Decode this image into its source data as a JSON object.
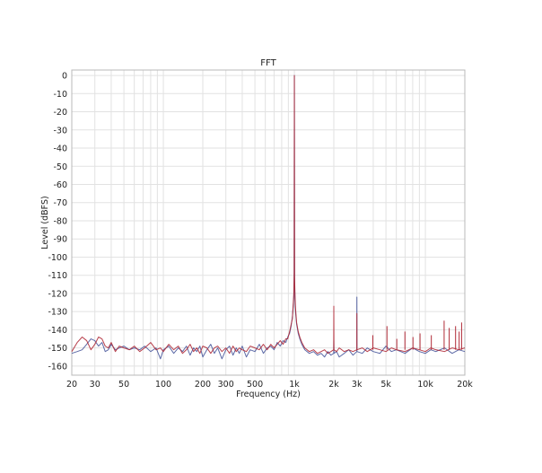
{
  "chart_data": {
    "type": "line",
    "title": "FFT",
    "xlabel": "Frequency (Hz)",
    "ylabel": "Level (dBFS)",
    "x_scale": "log",
    "xlim": [
      20,
      20000
    ],
    "ylim": [
      -165,
      3
    ],
    "grid": true,
    "x_tick_labels": [
      {
        "v": 20,
        "label": "20"
      },
      {
        "v": 30,
        "label": "30"
      },
      {
        "v": 50,
        "label": "50"
      },
      {
        "v": 100,
        "label": "100"
      },
      {
        "v": 200,
        "label": "200"
      },
      {
        "v": 300,
        "label": "300"
      },
      {
        "v": 500,
        "label": "500"
      },
      {
        "v": 1000,
        "label": "1k"
      },
      {
        "v": 2000,
        "label": "2k"
      },
      {
        "v": 3000,
        "label": "3k"
      },
      {
        "v": 5000,
        "label": "5k"
      },
      {
        "v": 10000,
        "label": "10k"
      },
      {
        "v": 20000,
        "label": "20k"
      }
    ],
    "y_tick_labels": [
      {
        "v": 0,
        "label": "0"
      },
      {
        "v": -10,
        "label": "-10"
      },
      {
        "v": -20,
        "label": "-20"
      },
      {
        "v": -30,
        "label": "-30"
      },
      {
        "v": -40,
        "label": "-40"
      },
      {
        "v": -50,
        "label": "-50"
      },
      {
        "v": -60,
        "label": "-60"
      },
      {
        "v": -70,
        "label": "-70"
      },
      {
        "v": -80,
        "label": "-80"
      },
      {
        "v": -90,
        "label": "-90"
      },
      {
        "v": -100,
        "label": "-100"
      },
      {
        "v": -110,
        "label": "-110"
      },
      {
        "v": -120,
        "label": "-120"
      },
      {
        "v": -130,
        "label": "-130"
      },
      {
        "v": -140,
        "label": "-140"
      },
      {
        "v": -150,
        "label": "-150"
      },
      {
        "v": -160,
        "label": "-160"
      }
    ],
    "series": [
      {
        "color": "#3f4f96",
        "points": [
          [
            20,
            -153
          ],
          [
            22,
            -152
          ],
          [
            24,
            -151
          ],
          [
            26,
            -148
          ],
          [
            28,
            -145
          ],
          [
            30,
            -146
          ],
          [
            32,
            -149
          ],
          [
            34,
            -147
          ],
          [
            36,
            -152
          ],
          [
            38,
            -151
          ],
          [
            40,
            -148
          ],
          [
            43,
            -151
          ],
          [
            46,
            -150
          ],
          [
            50,
            -149
          ],
          [
            55,
            -151
          ],
          [
            60,
            -150
          ],
          [
            66,
            -151
          ],
          [
            72,
            -149
          ],
          [
            80,
            -152
          ],
          [
            88,
            -150
          ],
          [
            95,
            -156
          ],
          [
            100,
            -151
          ],
          [
            110,
            -149
          ],
          [
            120,
            -153
          ],
          [
            130,
            -150
          ],
          [
            140,
            -152
          ],
          [
            150,
            -149
          ],
          [
            160,
            -154
          ],
          [
            170,
            -150
          ],
          [
            180,
            -152
          ],
          [
            190,
            -149
          ],
          [
            200,
            -155
          ],
          [
            215,
            -151
          ],
          [
            230,
            -148
          ],
          [
            245,
            -153
          ],
          [
            260,
            -150
          ],
          [
            280,
            -156
          ],
          [
            300,
            -151
          ],
          [
            320,
            -149
          ],
          [
            340,
            -154
          ],
          [
            360,
            -150
          ],
          [
            380,
            -153
          ],
          [
            400,
            -149
          ],
          [
            430,
            -155
          ],
          [
            460,
            -151
          ],
          [
            500,
            -152
          ],
          [
            540,
            -148
          ],
          [
            580,
            -153
          ],
          [
            620,
            -150
          ],
          [
            660,
            -149
          ],
          [
            700,
            -151
          ],
          [
            740,
            -147
          ],
          [
            780,
            -149
          ],
          [
            820,
            -146
          ],
          [
            860,
            -147
          ],
          [
            890,
            -144
          ],
          [
            920,
            -142
          ],
          [
            945,
            -138
          ],
          [
            965,
            -133
          ],
          [
            980,
            -127
          ],
          [
            990,
            -122
          ],
          [
            996,
            -110
          ],
          [
            1000,
            0
          ],
          [
            1004,
            -112
          ],
          [
            1010,
            -123
          ],
          [
            1020,
            -130
          ],
          [
            1040,
            -137
          ],
          [
            1070,
            -142
          ],
          [
            1100,
            -145
          ],
          [
            1140,
            -148
          ],
          [
            1200,
            -151
          ],
          [
            1300,
            -153
          ],
          [
            1400,
            -152
          ],
          [
            1500,
            -154
          ],
          [
            1600,
            -153
          ],
          [
            1700,
            -155
          ],
          [
            1800,
            -152
          ],
          [
            1900,
            -154
          ],
          [
            1995,
            -153
          ],
          [
            2000,
            -146
          ],
          [
            2005,
            -153
          ],
          [
            2100,
            -152
          ],
          [
            2200,
            -155
          ],
          [
            2400,
            -153
          ],
          [
            2600,
            -151
          ],
          [
            2800,
            -154
          ],
          [
            2995,
            -152
          ],
          [
            3000,
            -122
          ],
          [
            3005,
            -152
          ],
          [
            3300,
            -153
          ],
          [
            3600,
            -150
          ],
          [
            4000,
            -152
          ],
          [
            4500,
            -153
          ],
          [
            5000,
            -149
          ],
          [
            5500,
            -152
          ],
          [
            6000,
            -151
          ],
          [
            7000,
            -153
          ],
          [
            8000,
            -150
          ],
          [
            9000,
            -152
          ],
          [
            10000,
            -153
          ],
          [
            11000,
            -151
          ],
          [
            12000,
            -152
          ],
          [
            14000,
            -150
          ],
          [
            16000,
            -153
          ],
          [
            18000,
            -151
          ],
          [
            20000,
            -152
          ]
        ]
      },
      {
        "color": "#b02a37",
        "points": [
          [
            20,
            -152
          ],
          [
            22,
            -147
          ],
          [
            24,
            -144
          ],
          [
            26,
            -146
          ],
          [
            28,
            -151
          ],
          [
            30,
            -148
          ],
          [
            32,
            -144
          ],
          [
            34,
            -145
          ],
          [
            36,
            -149
          ],
          [
            38,
            -150
          ],
          [
            40,
            -147
          ],
          [
            43,
            -152
          ],
          [
            46,
            -149
          ],
          [
            50,
            -150
          ],
          [
            55,
            -151
          ],
          [
            60,
            -149
          ],
          [
            66,
            -152
          ],
          [
            72,
            -150
          ],
          [
            80,
            -147
          ],
          [
            88,
            -151
          ],
          [
            95,
            -150
          ],
          [
            100,
            -152
          ],
          [
            110,
            -148
          ],
          [
            120,
            -151
          ],
          [
            130,
            -149
          ],
          [
            140,
            -153
          ],
          [
            150,
            -151
          ],
          [
            160,
            -148
          ],
          [
            170,
            -152
          ],
          [
            180,
            -150
          ],
          [
            190,
            -153
          ],
          [
            200,
            -149
          ],
          [
            215,
            -150
          ],
          [
            230,
            -153
          ],
          [
            245,
            -150
          ],
          [
            260,
            -149
          ],
          [
            280,
            -152
          ],
          [
            300,
            -150
          ],
          [
            320,
            -153
          ],
          [
            340,
            -149
          ],
          [
            360,
            -152
          ],
          [
            380,
            -150
          ],
          [
            400,
            -151
          ],
          [
            430,
            -152
          ],
          [
            460,
            -149
          ],
          [
            500,
            -150
          ],
          [
            540,
            -151
          ],
          [
            580,
            -148
          ],
          [
            620,
            -151
          ],
          [
            660,
            -148
          ],
          [
            700,
            -150
          ],
          [
            740,
            -148
          ],
          [
            780,
            -146
          ],
          [
            820,
            -148
          ],
          [
            860,
            -145
          ],
          [
            890,
            -145
          ],
          [
            920,
            -141
          ],
          [
            945,
            -137
          ],
          [
            965,
            -134
          ],
          [
            980,
            -126
          ],
          [
            990,
            -120
          ],
          [
            996,
            -108
          ],
          [
            1000,
            0
          ],
          [
            1004,
            -111
          ],
          [
            1010,
            -119
          ],
          [
            1020,
            -128
          ],
          [
            1040,
            -136
          ],
          [
            1070,
            -141
          ],
          [
            1100,
            -144
          ],
          [
            1140,
            -147
          ],
          [
            1200,
            -150
          ],
          [
            1300,
            -152
          ],
          [
            1400,
            -151
          ],
          [
            1500,
            -153
          ],
          [
            1600,
            -152
          ],
          [
            1700,
            -151
          ],
          [
            1800,
            -153
          ],
          [
            1900,
            -152
          ],
          [
            1995,
            -151
          ],
          [
            2000,
            -127
          ],
          [
            2005,
            -151
          ],
          [
            2100,
            -152
          ],
          [
            2200,
            -150
          ],
          [
            2400,
            -152
          ],
          [
            2600,
            -151
          ],
          [
            2800,
            -152
          ],
          [
            2995,
            -151
          ],
          [
            3000,
            -131
          ],
          [
            3005,
            -151
          ],
          [
            3300,
            -150
          ],
          [
            3600,
            -152
          ],
          [
            4000,
            -150
          ],
          [
            4500,
            -151
          ],
          [
            5000,
            -152
          ],
          [
            5500,
            -150
          ],
          [
            6000,
            -151
          ],
          [
            7000,
            -152
          ],
          [
            8000,
            -150
          ],
          [
            9000,
            -151
          ],
          [
            10000,
            -152
          ],
          [
            11000,
            -150
          ],
          [
            12000,
            -151
          ],
          [
            14000,
            -152
          ],
          [
            16000,
            -150
          ],
          [
            18000,
            -151
          ],
          [
            20000,
            -150
          ]
        ]
      }
    ],
    "spurs": [
      {
        "x": 3970,
        "base": -151,
        "top": -143,
        "color": "#b02a37"
      },
      {
        "x": 5090,
        "base": -151,
        "top": -138,
        "color": "#b02a37"
      },
      {
        "x": 6050,
        "base": -151,
        "top": -145,
        "color": "#b02a37"
      },
      {
        "x": 6980,
        "base": -151,
        "top": -141,
        "color": "#b02a37"
      },
      {
        "x": 8040,
        "base": -151,
        "top": -144,
        "color": "#b02a37"
      },
      {
        "x": 9100,
        "base": -151,
        "top": -142,
        "color": "#b02a37"
      },
      {
        "x": 11100,
        "base": -151,
        "top": -143,
        "color": "#b02a37"
      },
      {
        "x": 13900,
        "base": -151,
        "top": -135,
        "color": "#b02a37"
      },
      {
        "x": 15200,
        "base": -151,
        "top": -139,
        "color": "#b02a37"
      },
      {
        "x": 17000,
        "base": -151,
        "top": -138,
        "color": "#b02a37"
      },
      {
        "x": 18100,
        "base": -151,
        "top": -141,
        "color": "#b02a37"
      },
      {
        "x": 18900,
        "base": -151,
        "top": -136,
        "color": "#b02a37"
      }
    ]
  }
}
